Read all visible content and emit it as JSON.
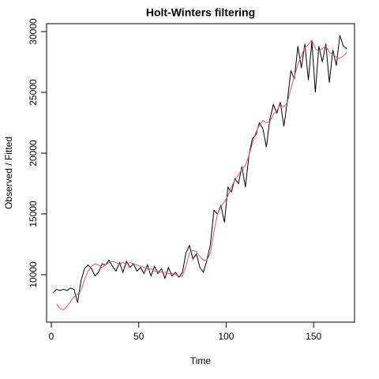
{
  "chart_data": {
    "type": "line",
    "title": "Holt-Winters filtering",
    "xlabel": "Time",
    "ylabel": "Observed / Fitted",
    "x": [
      1,
      3,
      5,
      7,
      9,
      11,
      13,
      15,
      17,
      19,
      21,
      23,
      25,
      27,
      29,
      31,
      33,
      35,
      37,
      39,
      41,
      43,
      45,
      47,
      49,
      51,
      53,
      55,
      57,
      59,
      61,
      63,
      65,
      67,
      69,
      71,
      73,
      75,
      77,
      79,
      81,
      83,
      85,
      87,
      89,
      91,
      93,
      95,
      97,
      99,
      101,
      103,
      105,
      107,
      109,
      111,
      113,
      115,
      117,
      119,
      121,
      123,
      125,
      127,
      129,
      131,
      133,
      135,
      137,
      139,
      141,
      143,
      145,
      147,
      149,
      151,
      153,
      155,
      157,
      159,
      161,
      163,
      165,
      167,
      169
    ],
    "series": [
      {
        "color": "#000000",
        "values": [
          8500,
          8800,
          8700,
          8800,
          8700,
          8900,
          8800,
          7700,
          9500,
          10500,
          10800,
          10500,
          9900,
          10200,
          10900,
          10800,
          11200,
          10700,
          10300,
          11000,
          10200,
          11100,
          10600,
          10900,
          10300,
          10600,
          10100,
          10800,
          9900,
          10700,
          10100,
          10500,
          9700,
          10600,
          9900,
          10200,
          9800,
          10200,
          11800,
          12400,
          11300,
          11700,
          10600,
          10200,
          11200,
          12500,
          15300,
          15000,
          15700,
          14300,
          17200,
          16800,
          17900,
          17500,
          18900,
          17200,
          19800,
          21200,
          21500,
          22500,
          22000,
          20500,
          22800,
          24000,
          23300,
          24200,
          22200,
          24300,
          26800,
          26100,
          28800,
          27000,
          29000,
          26000,
          29200,
          25000,
          28800,
          27500,
          29000,
          25800,
          28500,
          27200,
          29700,
          28800,
          28600
        ]
      },
      {
        "color": "#df536b",
        "values": [
          null,
          7600,
          7200,
          7100,
          7400,
          7800,
          8200,
          8400,
          8700,
          9600,
          10300,
          10700,
          10900,
          10800,
          10600,
          10800,
          11000,
          11100,
          11000,
          10900,
          11000,
          10900,
          11000,
          10900,
          10800,
          10700,
          10600,
          10500,
          10500,
          10300,
          10300,
          10200,
          10200,
          10100,
          10100,
          10000,
          9900,
          9900,
          10700,
          11800,
          12000,
          11900,
          11500,
          11200,
          11200,
          11800,
          13500,
          15000,
          15600,
          16000,
          16500,
          17200,
          17800,
          18200,
          18700,
          19000,
          19800,
          20800,
          21700,
          22300,
          22700,
          22500,
          22600,
          23200,
          23500,
          24000,
          23800,
          24200,
          25300,
          26300,
          27300,
          28000,
          28700,
          28900,
          29300,
          28600,
          28400,
          28600,
          28800,
          28300,
          28100,
          27900,
          27800,
          28000,
          28300
        ]
      }
    ],
    "xlim": [
      -2.7,
      173.4
    ],
    "ylim": [
      6100,
      30650
    ],
    "xticks": [
      0,
      50,
      100,
      150
    ],
    "yticks": [
      10000,
      15000,
      20000,
      25000,
      30000
    ]
  }
}
